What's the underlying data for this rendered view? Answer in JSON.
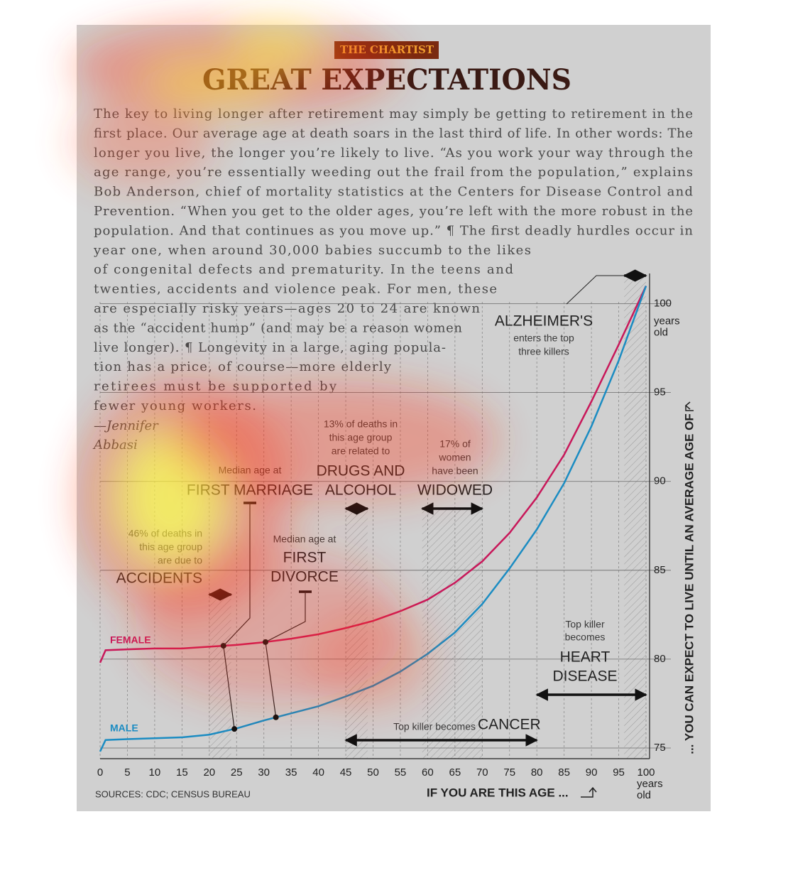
{
  "header": {
    "kicker": "THE CHARTIST",
    "title": "GREAT EXPECTATIONS"
  },
  "article": {
    "lines": [
      "The key to living longer after retirement may simply be getting to retirement in the",
      "first place. Our average age at death soars in the last third of life. In other words: The",
      "longer you live, the longer you’re likely to live. “As you work your way through the",
      "age range, you’re essentially weeding out the frail from the population,” explains",
      "Bob Anderson, chief of mortality statistics at the Centers for Disease Control and",
      "Prevention. “When you get to the older ages, you’re left with the more robust in the",
      "population. And that continues as you move up.” ¶ The first deadly hurdles occur in",
      "year one, when around 30,000 babies succumb to the likes",
      "of congenital defects and prematurity. In the teens and",
      "twenties, accidents and violence peak. For men, these",
      "are especially risky years—ages 20 to 24 are known",
      "as the “accident hump” (and may be a reason women",
      "live longer). ¶ Longevity in a large, aging popula-",
      "tion has a price, of course—more elderly",
      "retirees must be supported by",
      "fewer young workers."
    ],
    "byline": [
      "—Jennifer",
      "Abbasi"
    ]
  },
  "chart_data": {
    "type": "line",
    "x": [
      0,
      1,
      5,
      10,
      15,
      20,
      25,
      30,
      35,
      40,
      45,
      50,
      55,
      60,
      65,
      70,
      75,
      80,
      85,
      90,
      95,
      100
    ],
    "series": [
      {
        "name": "FEMALE",
        "color": "#c8185a",
        "values": [
          79.8,
          80.5,
          80.55,
          80.6,
          80.6,
          80.7,
          80.8,
          80.95,
          81.15,
          81.4,
          81.75,
          82.15,
          82.7,
          83.35,
          84.3,
          85.5,
          87.1,
          89.1,
          91.5,
          94.5,
          97.7,
          101
        ]
      },
      {
        "name": "MALE",
        "color": "#1b8cc2",
        "values": [
          74.8,
          75.45,
          75.5,
          75.55,
          75.6,
          75.75,
          76.1,
          76.55,
          76.95,
          77.35,
          77.9,
          78.5,
          79.3,
          80.3,
          81.5,
          83.1,
          85.1,
          87.3,
          89.9,
          93.1,
          96.8,
          101
        ]
      }
    ],
    "xlim": [
      0,
      100
    ],
    "ylim": [
      74.4,
      101.7
    ],
    "xticks": [
      0,
      5,
      10,
      15,
      20,
      25,
      30,
      35,
      40,
      45,
      50,
      55,
      60,
      65,
      70,
      75,
      80,
      85,
      90,
      95,
      100
    ],
    "yticks": [
      75,
      80,
      85,
      90,
      95,
      100
    ],
    "tick_unit": [
      "years",
      "old"
    ],
    "xlabel": "IF YOU ARE THIS AGE ...",
    "ylabel": "... YOU CAN EXPECT TO LIVE UNTIL AN AVERAGE AGE OF",
    "source": "SOURCES: CDC; CENSUS BUREAU",
    "grid": true,
    "annotations": [
      {
        "note": [
          "46% of deaths in",
          "this age group",
          "are due to"
        ],
        "headline": [
          "ACCIDENTS"
        ],
        "range": [
          20,
          24
        ]
      },
      {
        "note": [
          "13% of deaths in",
          "this age group",
          "are related to"
        ],
        "headline": [
          "DRUGS AND",
          "ALCOHOL"
        ],
        "range": [
          45,
          49
        ]
      },
      {
        "note": [
          "Median age at"
        ],
        "headline": [
          "FIRST MARRIAGE"
        ],
        "female_age": 22.6,
        "male_age": 24.6
      },
      {
        "note": [
          "Median age at"
        ],
        "headline": [
          "FIRST",
          "DIVORCE"
        ],
        "female_age": 30.3,
        "male_age": 32.2
      },
      {
        "note": [
          "17% of",
          "women",
          "have been"
        ],
        "headline": [
          "WIDOWED"
        ],
        "range": [
          59,
          70
        ]
      },
      {
        "note": [
          "enters the top",
          "three killers"
        ],
        "headline": [
          "ALZHEIMER'S"
        ],
        "range": [
          96,
          100
        ]
      },
      {
        "note": [
          "Top killer",
          "becomes"
        ],
        "headline": [
          "HEART",
          "DISEASE"
        ],
        "range": [
          80,
          100
        ]
      },
      {
        "note": [
          "Top killer becomes"
        ],
        "headline": [
          "CANCER"
        ],
        "range": [
          45,
          80
        ]
      }
    ]
  }
}
